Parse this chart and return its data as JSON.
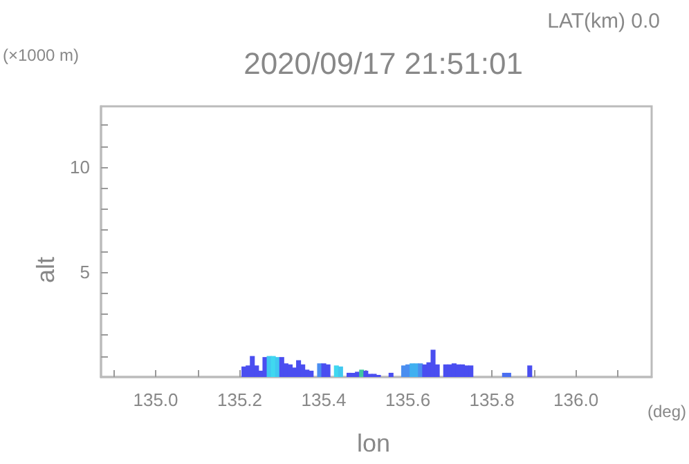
{
  "chart_data": {
    "type": "bar",
    "title": "2020/09/17 21:51:01",
    "subtitle": "LAT(km) 0.0",
    "xlabel": "lon",
    "ylabel": "alt",
    "annotations": [
      "(×1000 m)",
      "(deg)"
    ],
    "x": [
      135.21,
      135.22,
      135.23,
      135.24,
      135.25,
      135.26,
      135.27,
      135.28,
      135.29,
      135.3,
      135.31,
      135.32,
      135.33,
      135.34,
      135.35,
      135.36,
      135.37,
      135.38,
      135.39,
      135.4,
      135.41,
      135.42,
      135.43,
      135.44,
      135.45,
      135.46,
      135.47,
      135.48,
      135.49,
      135.5,
      135.51,
      135.52,
      135.53,
      135.54,
      135.55,
      135.56,
      135.57,
      135.58,
      135.59,
      135.6,
      135.61,
      135.62,
      135.63,
      135.64,
      135.65,
      135.66,
      135.67,
      135.68,
      135.69,
      135.7,
      135.71,
      135.72,
      135.73,
      135.74,
      135.75,
      135.76,
      135.77,
      135.78,
      135.79,
      135.8,
      135.81,
      135.82,
      135.83,
      135.84,
      135.85,
      135.86,
      135.87,
      135.88,
      135.89
    ],
    "values": [
      0.5,
      0.55,
      1.0,
      0.55,
      0.3,
      0.95,
      1.0,
      1.0,
      0.95,
      0.95,
      0.65,
      0.6,
      0.45,
      0.8,
      0.6,
      0.35,
      0.3,
      null,
      0.65,
      0.65,
      0.6,
      null,
      0.55,
      0.5,
      null,
      0.2,
      0.2,
      0.25,
      0.35,
      0.3,
      0.15,
      0.15,
      0.1,
      null,
      null,
      0.2,
      null,
      null,
      0.55,
      0.6,
      0.65,
      0.65,
      0.65,
      0.6,
      0.7,
      1.3,
      0.6,
      null,
      0.6,
      0.6,
      0.65,
      0.6,
      0.6,
      0.55,
      0.55,
      null,
      null,
      null,
      null,
      null,
      null,
      null,
      0.2,
      0.2,
      null,
      null,
      null,
      null,
      0.55
    ],
    "colors": [
      "#4a4ef0",
      "#4a4ef0",
      "#4a4ef0",
      "#4a4ef0",
      "#4a4ef0",
      "#4a4ef0",
      "#40c8f0",
      "#40d8f0",
      "#40c8f0",
      "#4a4ef0",
      "#4a4ef0",
      "#4a4ef0",
      "#4a4ef0",
      "#4a4ef0",
      "#4a4ef0",
      "#4a4ef0",
      "#4a4ef0",
      "#4a4ef0",
      "#4a8ef0",
      "#4a4ef0",
      "#4a4ef0",
      "#4a4ef0",
      "#40d8f0",
      "#40c8f0",
      "#4a4ef0",
      "#4a4ef0",
      "#4a4ef0",
      "#4a4ef0",
      "#40c8a0",
      "#4a4ef0",
      "#4a4ef0",
      "#4a4ef0",
      "#4a4ef0",
      "#4a4ef0",
      "#4a4ef0",
      "#4a4ef0",
      "#4a4ef0",
      "#4a4ef0",
      "#4a8ef0",
      "#4a8ef0",
      "#40b0f0",
      "#40b0f0",
      "#4a8ef0",
      "#4a4ef0",
      "#4a4ef0",
      "#4a4ef0",
      "#4a4ef0",
      "#4a4ef0",
      "#4a4ef0",
      "#4a4ef0",
      "#4a4ef0",
      "#4a4ef0",
      "#4a4ef0",
      "#4a4ef0",
      "#4a4ef0",
      "#4a4ef0",
      "#4a4ef0",
      "#4a4ef0",
      "#4a4ef0",
      "#4a4ef0",
      "#4a4ef0",
      "#4a4ef0",
      "#4a6ef0",
      "#4a6ef0",
      "#4a4ef0",
      "#4a4ef0",
      "#4a4ef0",
      "#4a4ef0",
      "#4a4ef0"
    ],
    "xlim": [
      134.87,
      136.18
    ],
    "xticks": [
      {
        "value": 134.9,
        "label": null
      },
      {
        "value": 135,
        "label": "135.0"
      },
      {
        "value": 135.1,
        "label": null
      },
      {
        "value": 135.2,
        "label": "135.2"
      },
      {
        "value": 135.3,
        "label": null
      },
      {
        "value": 135.4,
        "label": "135.4"
      },
      {
        "value": 135.5,
        "label": null
      },
      {
        "value": 135.6,
        "label": "135.6"
      },
      {
        "value": 135.7,
        "label": null
      },
      {
        "value": 135.8,
        "label": "135.8"
      },
      {
        "value": 135.9,
        "label": null
      },
      {
        "value": 136,
        "label": "136.0"
      },
      {
        "value": 136.1,
        "label": null
      }
    ],
    "ylim": [
      0,
      12.9
    ],
    "yticks": [
      {
        "value": 1,
        "label": null
      },
      {
        "value": 2,
        "label": null
      },
      {
        "value": 3,
        "label": null
      },
      {
        "value": 4,
        "label": null
      },
      5,
      {
        "value": 6,
        "label": null
      },
      {
        "value": 7,
        "label": null
      },
      {
        "value": 8,
        "label": null
      },
      {
        "value": 9,
        "label": null
      },
      10,
      {
        "value": 11,
        "label": null
      },
      {
        "value": 12,
        "label": null
      }
    ],
    "grid": false
  }
}
